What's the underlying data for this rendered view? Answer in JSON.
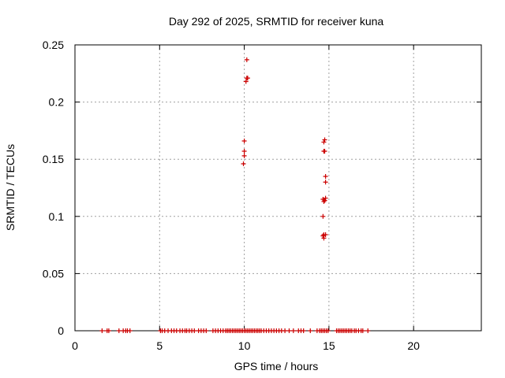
{
  "chart_data": {
    "type": "scatter",
    "title": "Day 292 of 2025, SRMTID for receiver kuna",
    "xlabel": "GPS time / hours",
    "ylabel": "SRMTID / TECUs",
    "xlim": [
      0,
      24
    ],
    "ylim": [
      0,
      0.25
    ],
    "x_ticks": [
      0,
      5,
      10,
      15,
      20
    ],
    "y_ticks": [
      0,
      0.05,
      0.1,
      0.15,
      0.2,
      0.25
    ],
    "x_tick_labels": [
      "0",
      "5",
      "10",
      "15",
      "20"
    ],
    "y_tick_labels": [
      "0",
      "0.05",
      "0.1",
      "0.15",
      "0.2",
      "0.25"
    ],
    "grid": true,
    "legend": "none",
    "marker": "+",
    "series": [
      {
        "name": "SRMTID",
        "color": "#cc0000",
        "points": [
          [
            1.6,
            0
          ],
          [
            1.9,
            0
          ],
          [
            2.0,
            0
          ],
          [
            2.6,
            0
          ],
          [
            2.85,
            0
          ],
          [
            3.0,
            0
          ],
          [
            3.1,
            0
          ],
          [
            3.25,
            0
          ],
          [
            5.05,
            0
          ],
          [
            5.15,
            0
          ],
          [
            5.3,
            0
          ],
          [
            5.5,
            0
          ],
          [
            5.7,
            0
          ],
          [
            5.85,
            0
          ],
          [
            6.0,
            0
          ],
          [
            6.2,
            0
          ],
          [
            6.35,
            0
          ],
          [
            6.5,
            0
          ],
          [
            6.6,
            0
          ],
          [
            6.75,
            0
          ],
          [
            6.9,
            0
          ],
          [
            7.05,
            0
          ],
          [
            7.3,
            0
          ],
          [
            7.45,
            0
          ],
          [
            7.6,
            0
          ],
          [
            7.75,
            0
          ],
          [
            8.15,
            0
          ],
          [
            8.3,
            0
          ],
          [
            8.45,
            0
          ],
          [
            8.6,
            0
          ],
          [
            8.75,
            0
          ],
          [
            8.9,
            0
          ],
          [
            9.0,
            0
          ],
          [
            9.1,
            0
          ],
          [
            9.2,
            0
          ],
          [
            9.3,
            0
          ],
          [
            9.4,
            0
          ],
          [
            9.5,
            0
          ],
          [
            9.6,
            0
          ],
          [
            9.7,
            0
          ],
          [
            9.8,
            0
          ],
          [
            9.9,
            0
          ],
          [
            10.0,
            0
          ],
          [
            10.1,
            0
          ],
          [
            10.2,
            0
          ],
          [
            10.3,
            0
          ],
          [
            10.4,
            0
          ],
          [
            10.5,
            0
          ],
          [
            10.6,
            0
          ],
          [
            10.7,
            0
          ],
          [
            10.8,
            0
          ],
          [
            10.9,
            0
          ],
          [
            11.0,
            0
          ],
          [
            11.15,
            0
          ],
          [
            11.3,
            0
          ],
          [
            11.45,
            0
          ],
          [
            11.6,
            0
          ],
          [
            11.75,
            0
          ],
          [
            11.9,
            0
          ],
          [
            12.05,
            0
          ],
          [
            12.2,
            0
          ],
          [
            12.4,
            0
          ],
          [
            12.65,
            0
          ],
          [
            12.9,
            0
          ],
          [
            13.2,
            0
          ],
          [
            13.35,
            0
          ],
          [
            13.5,
            0
          ],
          [
            13.9,
            0
          ],
          [
            14.3,
            0
          ],
          [
            14.45,
            0
          ],
          [
            14.55,
            0
          ],
          [
            14.65,
            0
          ],
          [
            14.75,
            0
          ],
          [
            14.85,
            0
          ],
          [
            14.95,
            0
          ],
          [
            15.45,
            0
          ],
          [
            15.55,
            0
          ],
          [
            15.65,
            0
          ],
          [
            15.75,
            0
          ],
          [
            15.85,
            0
          ],
          [
            15.95,
            0
          ],
          [
            16.05,
            0
          ],
          [
            16.15,
            0
          ],
          [
            16.25,
            0
          ],
          [
            16.35,
            0
          ],
          [
            16.5,
            0
          ],
          [
            16.6,
            0
          ],
          [
            16.75,
            0
          ],
          [
            16.9,
            0
          ],
          [
            17.0,
            0
          ],
          [
            17.3,
            0
          ],
          [
            10.15,
            0.237
          ],
          [
            10.15,
            0.221
          ],
          [
            10.2,
            0.221
          ],
          [
            10.1,
            0.218
          ],
          [
            10.0,
            0.166
          ],
          [
            10.0,
            0.157
          ],
          [
            10.0,
            0.153
          ],
          [
            9.95,
            0.146
          ],
          [
            14.75,
            0.167
          ],
          [
            14.7,
            0.165
          ],
          [
            14.7,
            0.157
          ],
          [
            14.75,
            0.157
          ],
          [
            14.8,
            0.135
          ],
          [
            14.8,
            0.13
          ],
          [
            14.8,
            0.116
          ],
          [
            14.65,
            0.115
          ],
          [
            14.75,
            0.114
          ],
          [
            14.7,
            0.113
          ],
          [
            14.65,
            0.1
          ],
          [
            14.7,
            0.084
          ],
          [
            14.8,
            0.084
          ],
          [
            14.65,
            0.083
          ],
          [
            14.7,
            0.081
          ]
        ]
      }
    ]
  }
}
